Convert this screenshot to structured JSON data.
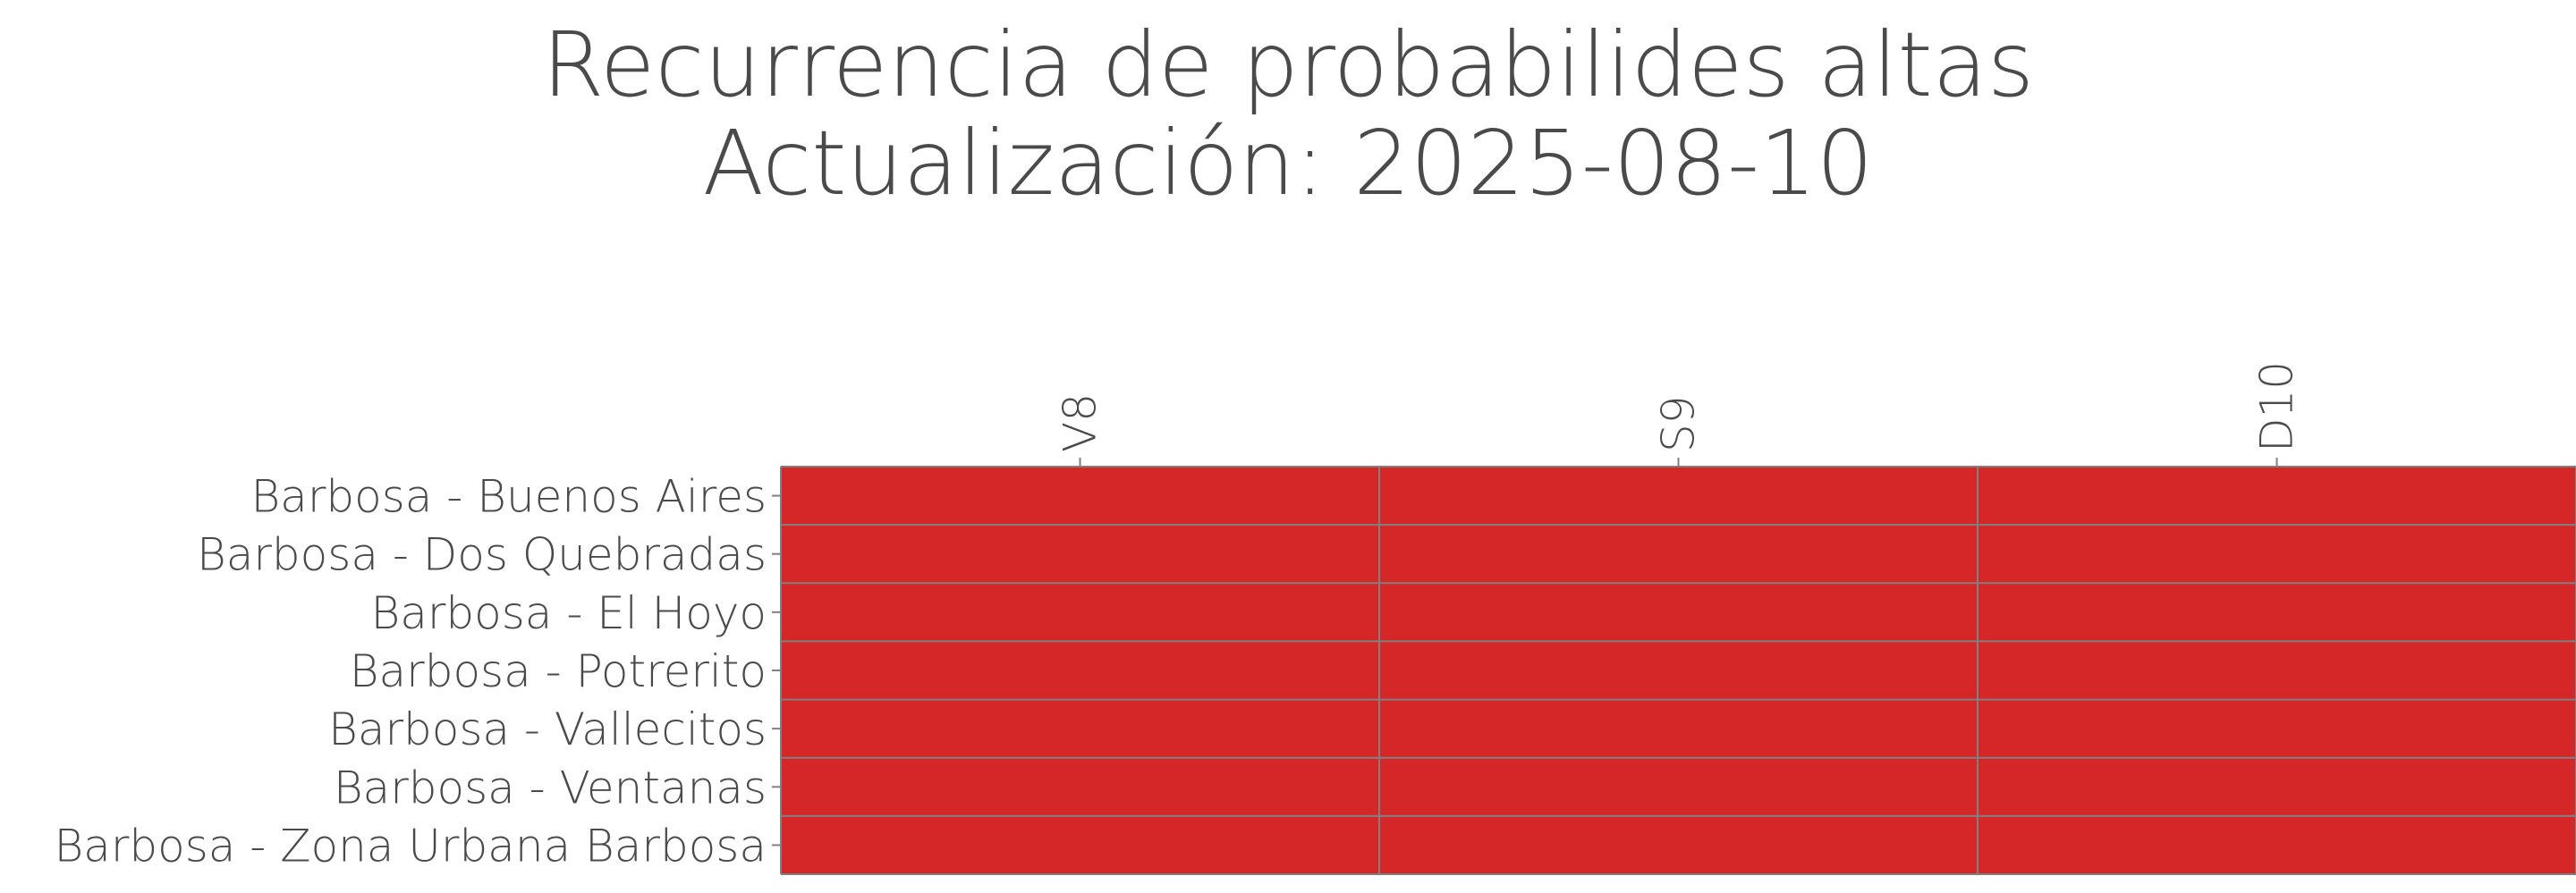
{
  "chart_data": {
    "type": "heatmap",
    "title": "Recurrencia de probabilides altas",
    "subtitle": "Actualización: 2025-08-10",
    "x": [
      "V8",
      "S9",
      "D10"
    ],
    "y": [
      "Barbosa - Buenos Aires",
      "Barbosa - Dos Quebradas",
      "Barbosa - El Hoyo",
      "Barbosa - Potrerito",
      "Barbosa - Vallecitos",
      "Barbosa - Ventanas",
      "Barbosa - Zona Urbana Barbosa"
    ],
    "values": [
      [
        "alta",
        "alta",
        "alta"
      ],
      [
        "alta",
        "alta",
        "alta"
      ],
      [
        "alta",
        "alta",
        "alta"
      ],
      [
        "alta",
        "alta",
        "alta"
      ],
      [
        "alta",
        "alta",
        "alta"
      ],
      [
        "alta",
        "alta",
        "alta"
      ],
      [
        "alta",
        "alta",
        "alta"
      ]
    ],
    "colors": {
      "alta": "#d62728",
      "grid": "#808080",
      "text": "#4a4a4a"
    },
    "xaxis_position": "top",
    "xtick_rotation": 90
  }
}
